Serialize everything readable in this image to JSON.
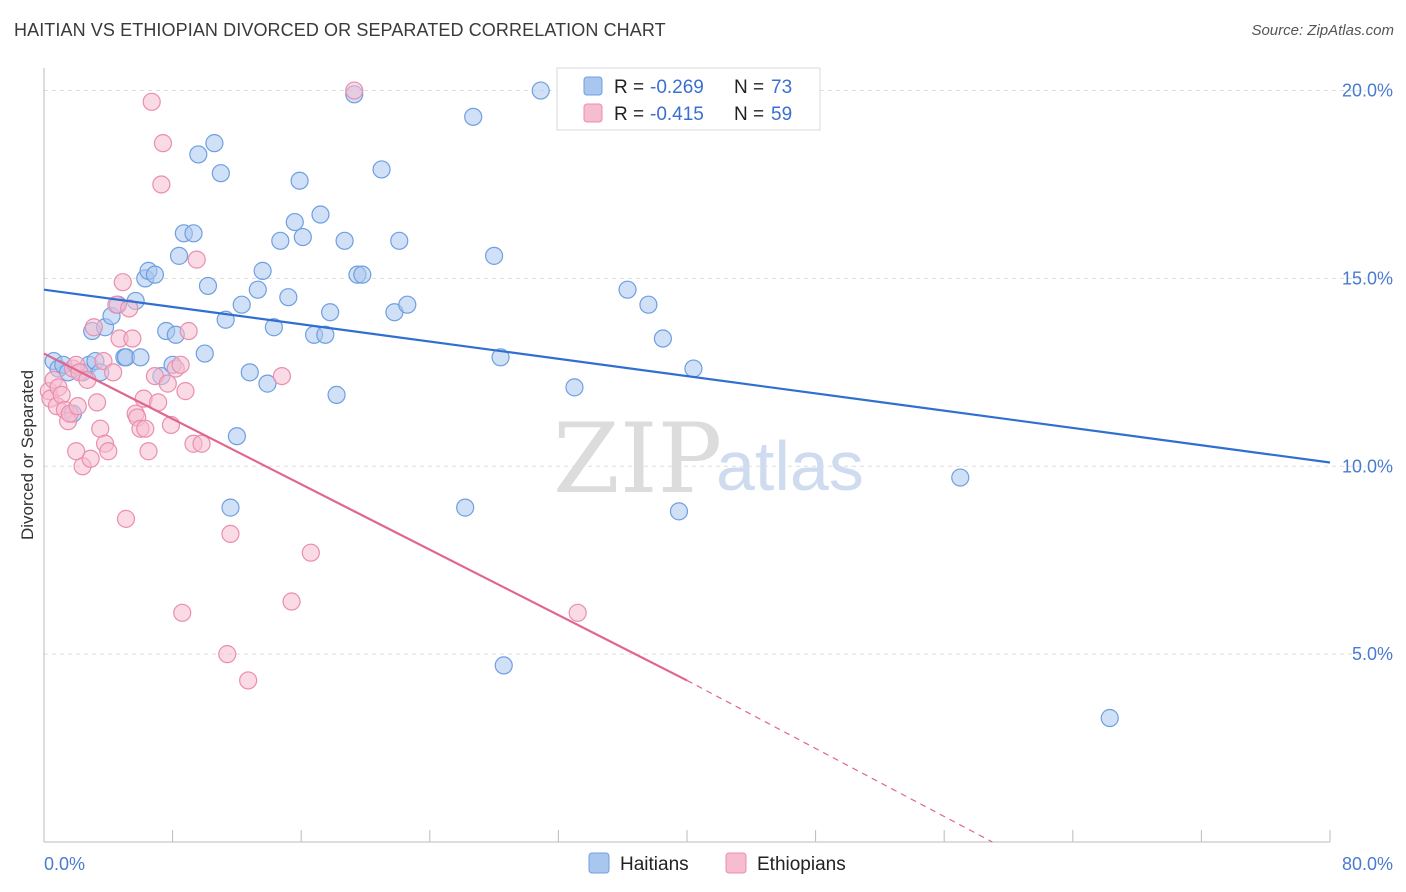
{
  "title": "HAITIAN VS ETHIOPIAN DIVORCED OR SEPARATED CORRELATION CHART",
  "source": "Source: ZipAtlas.com",
  "colors": {
    "haitians_fill": "#a9c6ee",
    "haitians_stroke": "#6f9fe0",
    "haitians_line": "#2f6fd0",
    "ethiopians_fill": "#f6bcd0",
    "ethiopians_stroke": "#ea8eae",
    "ethiopians_line": "#e0668f",
    "grid": "#dddddd",
    "tick_label": "#4a7bd0"
  },
  "watermark": {
    "zip": "ZIP",
    "atlas": "atlas"
  },
  "stats": [
    {
      "r_label": "R = ",
      "r_value": "-0.269",
      "n_label": "N = ",
      "n_value": "73"
    },
    {
      "r_label": "R = ",
      "r_value": "-0.415",
      "n_label": "N = ",
      "n_value": "59"
    }
  ],
  "legend": [
    "Haitians",
    "Ethiopians"
  ],
  "chart_data": {
    "type": "scatter",
    "xlabel": "",
    "ylabel": "Divorced or Separated",
    "xlim": [
      0,
      80
    ],
    "ylim": [
      0,
      20.6
    ],
    "x_tick_labels": [
      "0.0%",
      "80.0%"
    ],
    "y_ticks": [
      5,
      10,
      15,
      20
    ],
    "y_tick_labels": [
      "5.0%",
      "10.0%",
      "15.0%",
      "20.0%"
    ],
    "grid": true,
    "legend_position": "bottom-center",
    "series": [
      {
        "name": "Haitians",
        "r": -0.269,
        "n": 73,
        "trend": {
          "x": [
            0,
            80
          ],
          "y": [
            14.7,
            10.1
          ]
        },
        "points": [
          [
            0.6,
            12.8
          ],
          [
            0.9,
            12.6
          ],
          [
            1.2,
            12.7
          ],
          [
            1.5,
            12.5
          ],
          [
            1.8,
            11.4
          ],
          [
            2.4,
            12.5
          ],
          [
            2.8,
            12.7
          ],
          [
            3.0,
            13.6
          ],
          [
            3.2,
            12.8
          ],
          [
            3.5,
            12.5
          ],
          [
            3.8,
            13.7
          ],
          [
            4.2,
            14.0
          ],
          [
            4.6,
            14.3
          ],
          [
            5.0,
            12.9
          ],
          [
            5.1,
            12.9
          ],
          [
            5.7,
            14.4
          ],
          [
            6.0,
            12.9
          ],
          [
            6.3,
            15.0
          ],
          [
            6.5,
            15.2
          ],
          [
            6.9,
            15.1
          ],
          [
            7.3,
            12.4
          ],
          [
            7.6,
            13.6
          ],
          [
            8.0,
            12.7
          ],
          [
            8.4,
            15.6
          ],
          [
            8.7,
            16.2
          ],
          [
            9.3,
            16.2
          ],
          [
            9.6,
            18.3
          ],
          [
            10.0,
            13.0
          ],
          [
            10.2,
            14.8
          ],
          [
            10.6,
            18.6
          ],
          [
            11.0,
            17.8
          ],
          [
            11.3,
            13.9
          ],
          [
            11.6,
            8.9
          ],
          [
            12.0,
            10.8
          ],
          [
            12.3,
            14.3
          ],
          [
            12.8,
            12.5
          ],
          [
            13.3,
            14.7
          ],
          [
            13.6,
            15.2
          ],
          [
            13.9,
            12.2
          ],
          [
            14.3,
            13.7
          ],
          [
            14.7,
            16.0
          ],
          [
            15.2,
            14.5
          ],
          [
            15.6,
            16.5
          ],
          [
            15.9,
            17.6
          ],
          [
            16.1,
            16.1
          ],
          [
            16.8,
            13.5
          ],
          [
            17.2,
            16.7
          ],
          [
            17.5,
            13.5
          ],
          [
            17.8,
            14.1
          ],
          [
            18.2,
            11.9
          ],
          [
            18.7,
            16.0
          ],
          [
            19.5,
            15.1
          ],
          [
            19.8,
            15.1
          ],
          [
            21.0,
            17.9
          ],
          [
            21.8,
            14.1
          ],
          [
            22.1,
            16.0
          ],
          [
            22.6,
            14.3
          ],
          [
            19.3,
            19.9
          ],
          [
            26.2,
            8.9
          ],
          [
            26.7,
            19.3
          ],
          [
            28.0,
            15.6
          ],
          [
            28.4,
            12.9
          ],
          [
            28.6,
            4.7
          ],
          [
            30.9,
            20.0
          ],
          [
            33.0,
            12.1
          ],
          [
            36.3,
            14.7
          ],
          [
            37.6,
            14.3
          ],
          [
            38.5,
            13.4
          ],
          [
            39.5,
            8.8
          ],
          [
            40.4,
            12.6
          ],
          [
            57.0,
            9.7
          ],
          [
            66.3,
            3.3
          ],
          [
            8.2,
            13.5
          ]
        ]
      },
      {
        "name": "Ethiopians",
        "r": -0.415,
        "n": 59,
        "trend": {
          "x": [
            0,
            40
          ],
          "y": [
            13.0,
            4.3
          ]
        },
        "trend_dashed": {
          "x": [
            40,
            59
          ],
          "y": [
            4.3,
            0.0
          ]
        },
        "points": [
          [
            0.3,
            12.0
          ],
          [
            0.4,
            11.8
          ],
          [
            0.6,
            12.3
          ],
          [
            0.8,
            11.6
          ],
          [
            0.9,
            12.1
          ],
          [
            1.1,
            11.9
          ],
          [
            1.3,
            11.5
          ],
          [
            1.5,
            11.2
          ],
          [
            1.6,
            11.4
          ],
          [
            1.8,
            12.6
          ],
          [
            2.0,
            12.7
          ],
          [
            2.1,
            11.6
          ],
          [
            2.2,
            12.5
          ],
          [
            2.4,
            10.0
          ],
          [
            2.7,
            12.3
          ],
          [
            2.9,
            10.2
          ],
          [
            3.1,
            13.7
          ],
          [
            3.3,
            11.7
          ],
          [
            3.5,
            11.0
          ],
          [
            3.7,
            12.8
          ],
          [
            3.8,
            10.6
          ],
          [
            4.0,
            10.4
          ],
          [
            4.3,
            12.5
          ],
          [
            4.5,
            14.3
          ],
          [
            4.7,
            13.4
          ],
          [
            4.9,
            14.9
          ],
          [
            5.1,
            8.6
          ],
          [
            5.3,
            14.2
          ],
          [
            5.5,
            13.4
          ],
          [
            5.7,
            11.4
          ],
          [
            5.8,
            11.3
          ],
          [
            6.0,
            11.0
          ],
          [
            6.2,
            11.8
          ],
          [
            6.3,
            11.0
          ],
          [
            6.5,
            10.4
          ],
          [
            6.7,
            19.7
          ],
          [
            6.9,
            12.4
          ],
          [
            7.1,
            11.7
          ],
          [
            7.3,
            17.5
          ],
          [
            7.4,
            18.6
          ],
          [
            7.7,
            12.2
          ],
          [
            7.9,
            11.1
          ],
          [
            8.2,
            12.6
          ],
          [
            8.5,
            12.7
          ],
          [
            8.6,
            6.1
          ],
          [
            8.8,
            12.0
          ],
          [
            9.0,
            13.6
          ],
          [
            9.3,
            10.6
          ],
          [
            9.5,
            15.5
          ],
          [
            9.8,
            10.6
          ],
          [
            11.4,
            5.0
          ],
          [
            11.6,
            8.2
          ],
          [
            12.7,
            4.3
          ],
          [
            14.8,
            12.4
          ],
          [
            15.4,
            6.4
          ],
          [
            16.6,
            7.7
          ],
          [
            19.3,
            20.0
          ],
          [
            33.2,
            6.1
          ],
          [
            2.0,
            10.4
          ]
        ]
      }
    ]
  }
}
